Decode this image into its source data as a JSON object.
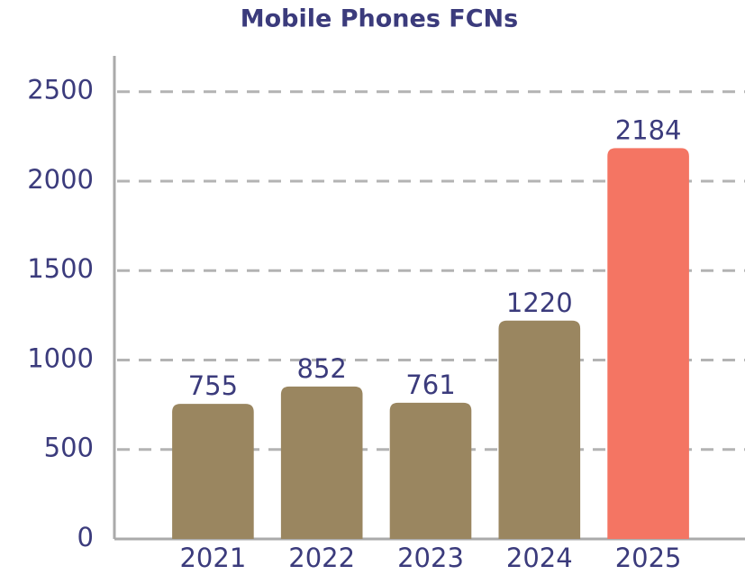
{
  "chart_data": {
    "type": "bar",
    "title": "Mobile Phones FCNs",
    "categories": [
      "2021",
      "2022",
      "2023",
      "2024",
      "2025"
    ],
    "values": [
      755,
      852,
      761,
      1220,
      2184
    ],
    "colors": [
      "#9a8660",
      "#9a8660",
      "#9a8660",
      "#9a8660",
      "#f47563"
    ],
    "ylim": [
      0,
      2700
    ],
    "yticks": [
      0,
      500,
      1000,
      1500,
      2000,
      2500
    ],
    "grid": true
  }
}
